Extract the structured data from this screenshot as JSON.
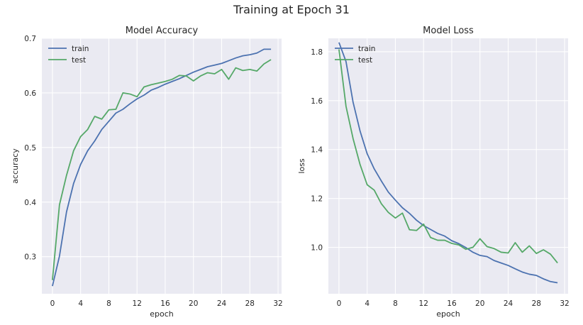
{
  "suptitle": "Training at Epoch 31",
  "colors": {
    "train": "#4c72b0",
    "test": "#55a868",
    "axes_bg": "#eaeaf2",
    "grid": "#ffffff"
  },
  "chart_data": [
    {
      "type": "line",
      "title": "Model Accuracy",
      "xlabel": "epoch",
      "ylabel": "accuracy",
      "xlim": [
        -1.5,
        32.5
      ],
      "ylim": [
        0.232,
        0.7
      ],
      "xticks": [
        0,
        4,
        8,
        12,
        16,
        20,
        24,
        28,
        32
      ],
      "yticks": [
        0.3,
        0.4,
        0.5,
        0.6,
        0.7
      ],
      "yticklabels": [
        "0.3",
        "0.4",
        "0.5",
        "0.6",
        "0.7"
      ],
      "grid": true,
      "legend": "top-left",
      "x": [
        0,
        1,
        2,
        3,
        4,
        5,
        6,
        7,
        8,
        9,
        10,
        11,
        12,
        13,
        14,
        15,
        16,
        17,
        18,
        19,
        20,
        21,
        22,
        23,
        24,
        25,
        26,
        27,
        28,
        29,
        30,
        31
      ],
      "series": [
        {
          "name": "train",
          "values": [
            0.246,
            0.301,
            0.382,
            0.434,
            0.469,
            0.494,
            0.512,
            0.533,
            0.548,
            0.563,
            0.57,
            0.58,
            0.589,
            0.596,
            0.605,
            0.61,
            0.616,
            0.621,
            0.626,
            0.632,
            0.638,
            0.643,
            0.648,
            0.651,
            0.654,
            0.659,
            0.664,
            0.668,
            0.67,
            0.673,
            0.68,
            0.68
          ]
        },
        {
          "name": "test",
          "values": [
            0.257,
            0.395,
            0.449,
            0.494,
            0.52,
            0.533,
            0.557,
            0.552,
            0.569,
            0.57,
            0.6,
            0.598,
            0.593,
            0.611,
            0.615,
            0.618,
            0.621,
            0.625,
            0.632,
            0.631,
            0.622,
            0.631,
            0.637,
            0.635,
            0.643,
            0.625,
            0.646,
            0.641,
            0.643,
            0.64,
            0.653,
            0.661
          ]
        }
      ]
    },
    {
      "type": "line",
      "title": "Model Loss",
      "xlabel": "epoch",
      "ylabel": "loss",
      "xlim": [
        -1.5,
        32.5
      ],
      "ylim": [
        0.81,
        1.855
      ],
      "xticks": [
        0,
        4,
        8,
        12,
        16,
        20,
        24,
        28,
        32
      ],
      "yticks": [
        1.0,
        1.2,
        1.4,
        1.6,
        1.8
      ],
      "yticklabels": [
        "1.0",
        "1.2",
        "1.4",
        "1.6",
        "1.8"
      ],
      "grid": true,
      "legend": "top-left",
      "x": [
        0,
        1,
        2,
        3,
        4,
        5,
        6,
        7,
        8,
        9,
        10,
        11,
        12,
        13,
        14,
        15,
        16,
        17,
        18,
        19,
        20,
        21,
        22,
        23,
        24,
        25,
        26,
        27,
        28,
        29,
        30,
        31
      ],
      "series": [
        {
          "name": "train",
          "values": [
            1.838,
            1.76,
            1.594,
            1.475,
            1.383,
            1.321,
            1.272,
            1.226,
            1.193,
            1.162,
            1.139,
            1.111,
            1.089,
            1.073,
            1.057,
            1.046,
            1.027,
            1.015,
            0.999,
            0.98,
            0.967,
            0.962,
            0.946,
            0.936,
            0.926,
            0.912,
            0.899,
            0.89,
            0.885,
            0.871,
            0.86,
            0.855
          ]
        },
        {
          "name": "test",
          "values": [
            1.81,
            1.577,
            1.445,
            1.338,
            1.256,
            1.234,
            1.179,
            1.143,
            1.12,
            1.14,
            1.072,
            1.069,
            1.095,
            1.04,
            1.029,
            1.029,
            1.016,
            1.01,
            0.992,
            1.0,
            1.035,
            1.003,
            0.995,
            0.98,
            0.977,
            1.019,
            0.98,
            1.006,
            0.975,
            0.99,
            0.972,
            0.936
          ]
        }
      ]
    }
  ]
}
